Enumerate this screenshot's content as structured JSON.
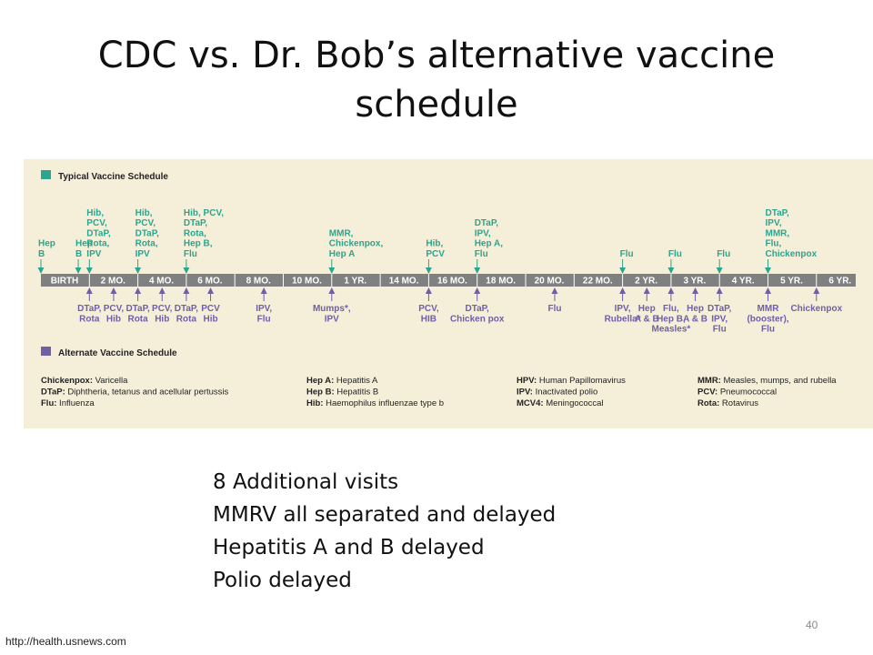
{
  "slide": {
    "title_lines": [
      "CDC vs. Dr. Bob’s alternative vaccine",
      "schedule"
    ],
    "bullets": [
      "8 Additional visits",
      "MMRV all separated and delayed",
      "Hepatitis A and B delayed",
      "Polio delayed"
    ],
    "source": "http://health.usnews.com",
    "page_number": "40"
  },
  "colors": {
    "typical": "#2aa58f",
    "alternate": "#6f5fa8",
    "bar": "#808080",
    "bg": "#f5efd9"
  },
  "diagram": {
    "typical_title": "Typical Vaccine Schedule",
    "alternate_title": "Alternate Vaccine Schedule",
    "ages": [
      "BIRTH",
      "2 MO.",
      "4 MO.",
      "6 MO.",
      "8 MO.",
      "10 MO.",
      "1 YR.",
      "14 MO.",
      "16 MO.",
      "18 MO.",
      "20 MO.",
      "22 MO.",
      "2 YR.",
      "3 YR.",
      "4 YR.",
      "5 YR.",
      "6 YR."
    ],
    "typical": [
      {
        "pos": 0,
        "lines": [
          "Hep",
          "B"
        ]
      },
      {
        "pos": 0.77,
        "lines": [
          "Hep",
          "B"
        ]
      },
      {
        "pos": 1,
        "lines": [
          "Hib,",
          "PCV,",
          "DTaP,",
          "Rota,",
          "IPV"
        ]
      },
      {
        "pos": 2,
        "lines": [
          "Hib,",
          "PCV,",
          "DTaP,",
          "Rota,",
          "IPV"
        ]
      },
      {
        "pos": 3,
        "lines": [
          "Hib, PCV,",
          "DTaP,",
          "Rota,",
          "Hep B,",
          "Flu"
        ]
      },
      {
        "pos": 6,
        "lines": [
          "MMR,",
          "Chickenpox,",
          "Hep A"
        ]
      },
      {
        "pos": 8,
        "lines": [
          "Hib,",
          "PCV"
        ]
      },
      {
        "pos": 9,
        "lines": [
          "DTaP,",
          "IPV,",
          "Hep A,",
          "Flu"
        ]
      },
      {
        "pos": 12,
        "lines": [
          "Flu"
        ]
      },
      {
        "pos": 13,
        "lines": [
          "Flu"
        ]
      },
      {
        "pos": 14,
        "lines": [
          "Flu"
        ]
      },
      {
        "pos": 15,
        "lines": [
          "DTaP,",
          "IPV,",
          "MMR,",
          "Flu,",
          "Chickenpox"
        ]
      }
    ],
    "alternate": [
      {
        "pos": 1,
        "lines": [
          "DTaP,",
          "Rota"
        ]
      },
      {
        "pos": 1.5,
        "lines": [
          "PCV,",
          "Hib"
        ]
      },
      {
        "pos": 2,
        "lines": [
          "DTaP,",
          "Rota"
        ]
      },
      {
        "pos": 2.5,
        "lines": [
          "PCV,",
          "Hib"
        ]
      },
      {
        "pos": 3,
        "lines": [
          "DTaP,",
          "Rota"
        ]
      },
      {
        "pos": 3.5,
        "lines": [
          "PCV",
          "Hib"
        ]
      },
      {
        "pos": 4.6,
        "lines": [
          "IPV,",
          "Flu"
        ]
      },
      {
        "pos": 6,
        "lines": [
          "Mumps*,",
          "IPV"
        ]
      },
      {
        "pos": 8,
        "lines": [
          "PCV,",
          "HIB"
        ]
      },
      {
        "pos": 9,
        "lines": [
          "DTaP,",
          "Chicken pox"
        ]
      },
      {
        "pos": 10.6,
        "lines": [
          "Flu"
        ]
      },
      {
        "pos": 12,
        "lines": [
          "IPV,",
          "Rubella*"
        ]
      },
      {
        "pos": 12.5,
        "lines": [
          "Hep",
          "A & B"
        ]
      },
      {
        "pos": 13,
        "lines": [
          "Flu,",
          "Hep B,",
          "Measles*"
        ]
      },
      {
        "pos": 13.5,
        "lines": [
          "Hep",
          "A & B"
        ]
      },
      {
        "pos": 14,
        "lines": [
          "DTaP,",
          "IPV,",
          "Flu"
        ]
      },
      {
        "pos": 15,
        "lines": [
          "MMR",
          "(booster),",
          "Flu"
        ]
      },
      {
        "pos": 16,
        "lines": [
          "Chickenpox"
        ]
      }
    ],
    "legend": [
      [
        {
          "term": "Chickenpox:",
          "def": " Varicella"
        },
        {
          "term": "DTaP:",
          "def": " Diphtheria, tetanus and acellular pertussis"
        },
        {
          "term": "Flu:",
          "def": " Influenza"
        }
      ],
      [
        {
          "term": "Hep A:",
          "def": " Hepatitis A"
        },
        {
          "term": "Hep B:",
          "def": " Hepatitis B"
        },
        {
          "term": "Hib:",
          "def": " Haemophilus influenzae type b"
        }
      ],
      [
        {
          "term": "HPV:",
          "def": " Human Papillomavirus"
        },
        {
          "term": "IPV:",
          "def": " Inactivated polio"
        },
        {
          "term": "MCV4:",
          "def": " Meningococcal"
        }
      ],
      [
        {
          "term": "MMR:",
          "def": " Measles, mumps, and rubella"
        },
        {
          "term": "PCV:",
          "def": " Pneumococcal"
        },
        {
          "term": "Rota:",
          "def": " Rotavirus"
        }
      ]
    ]
  }
}
